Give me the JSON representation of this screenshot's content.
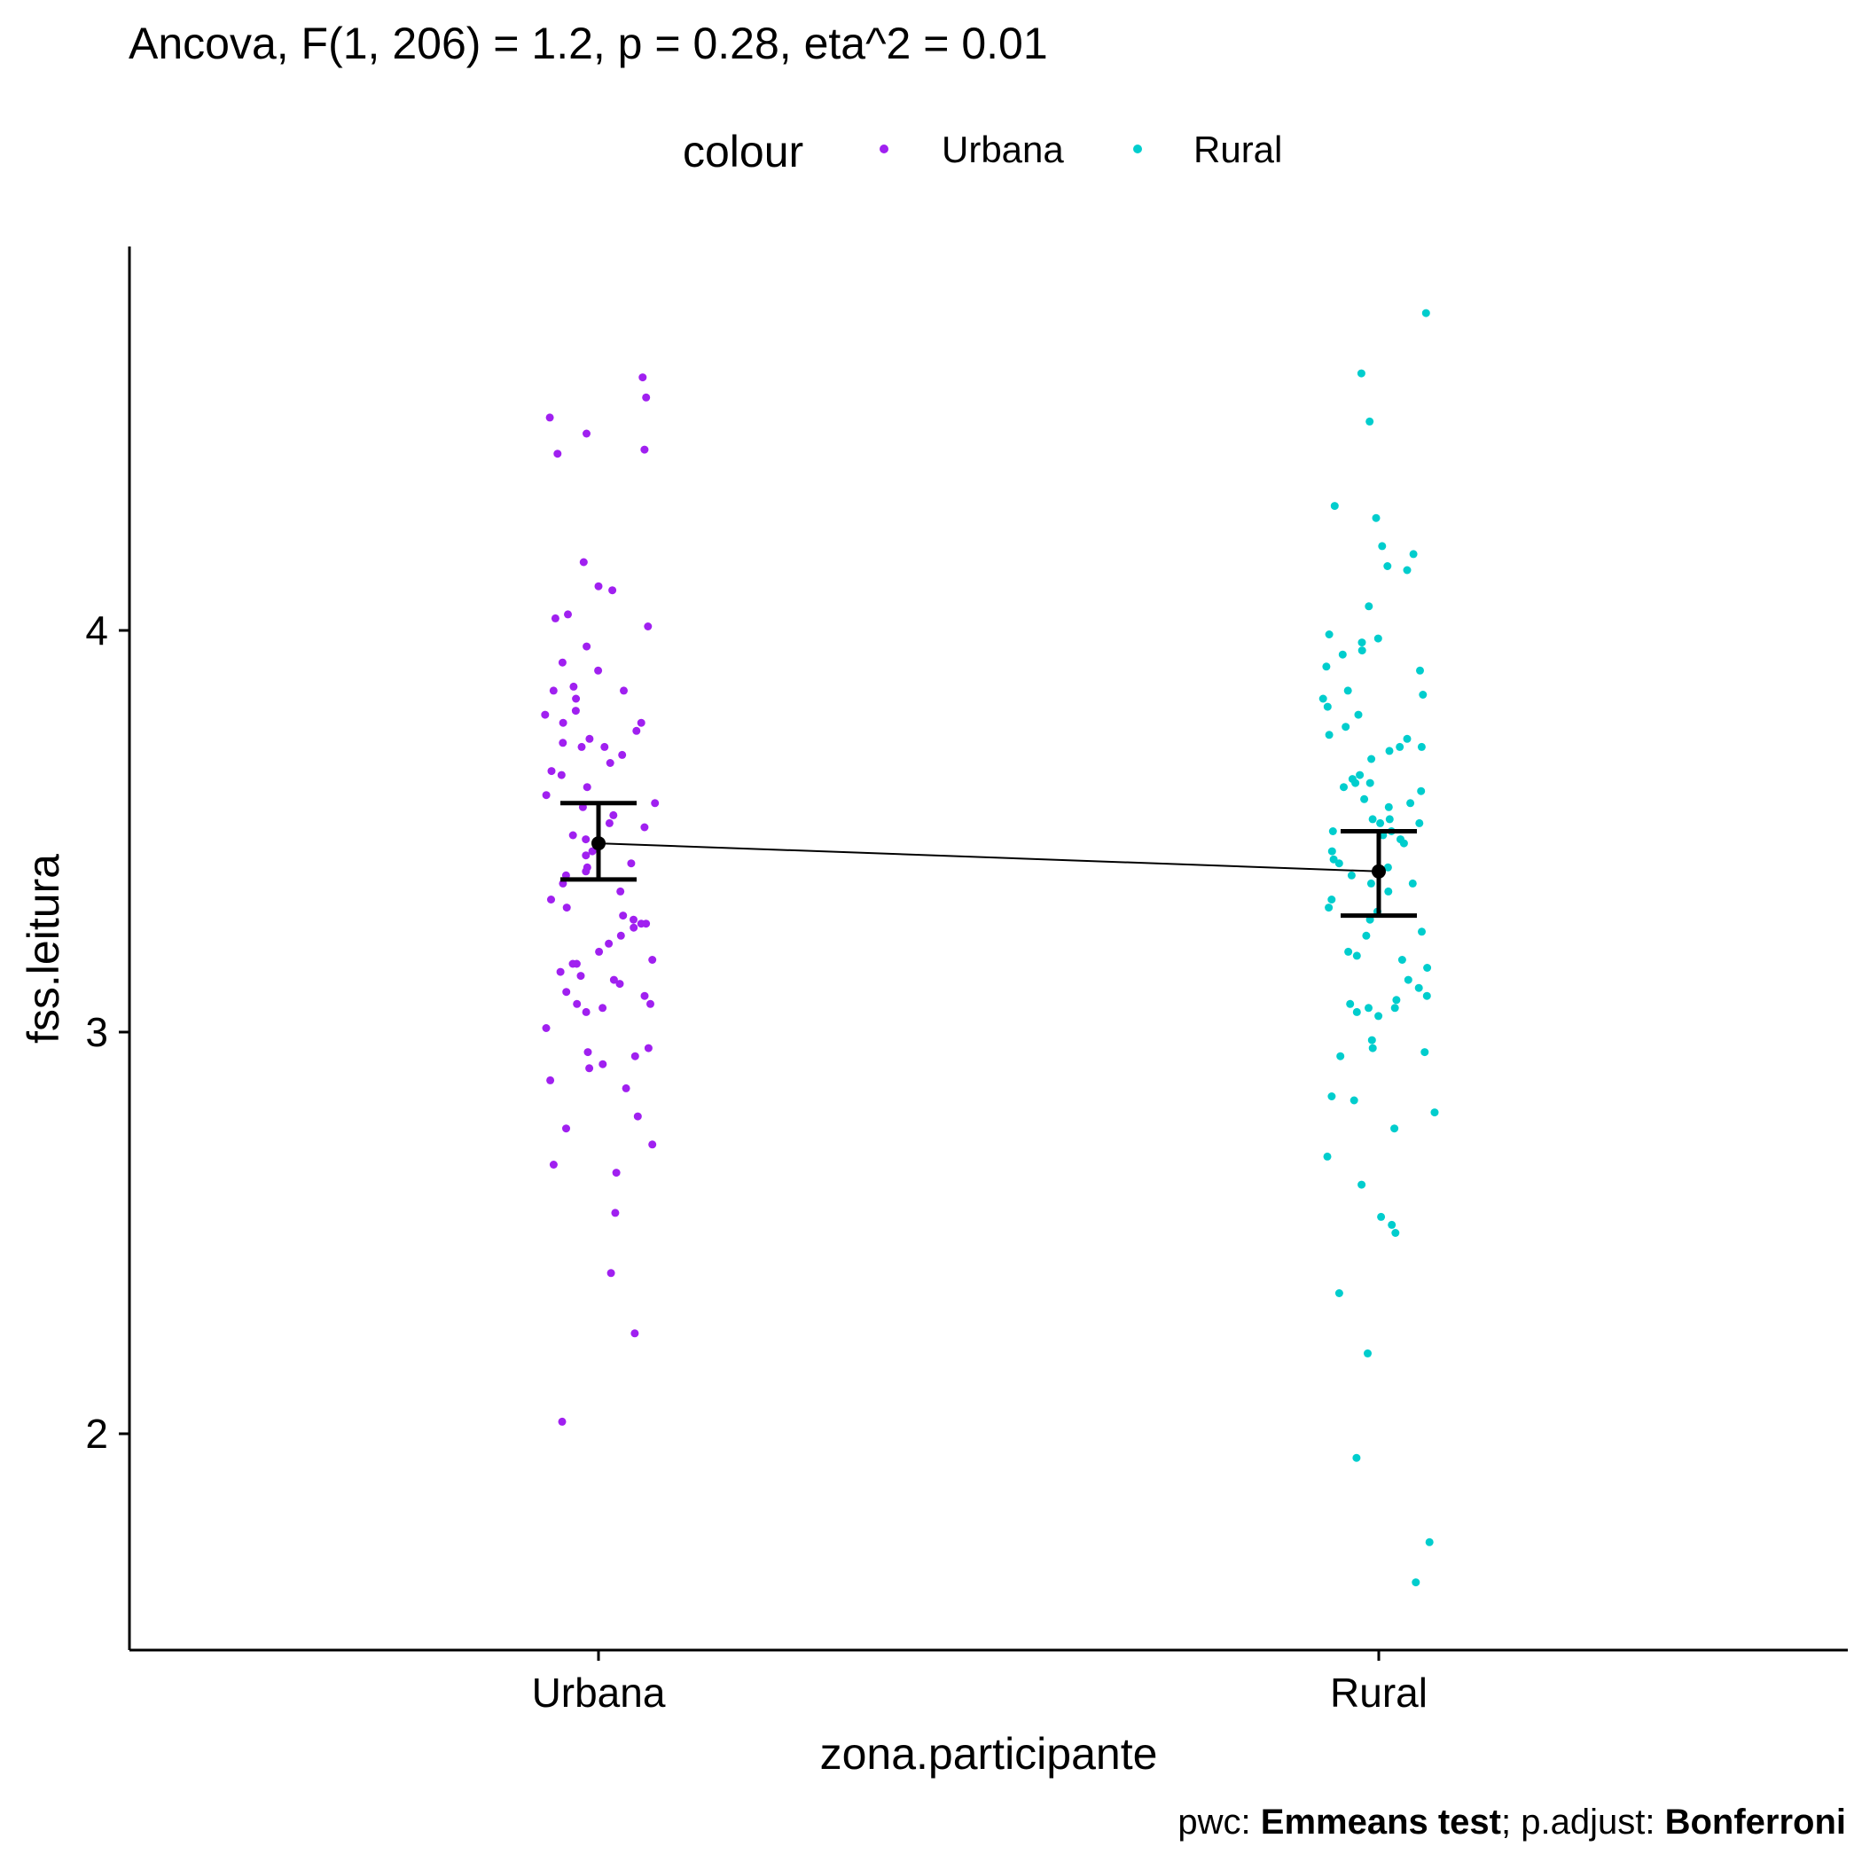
{
  "chart_data": {
    "type": "scatter",
    "title": "Ancova, F(1, 206) = 1.2, p = 0.28, eta^2 = 0.01",
    "xlabel": "zona.participante",
    "ylabel": "fss.leitura",
    "categories": [
      "Urbana",
      "Rural"
    ],
    "yticks": [
      2,
      3,
      4
    ],
    "ylim": [
      1.53,
      5.0
    ],
    "legend": {
      "title": "colour",
      "position": "top",
      "entries": [
        {
          "label": "Urbana",
          "color": "#A020F0"
        },
        {
          "label": "Rural",
          "color": "#00CDCD"
        }
      ]
    },
    "emmeans": [
      {
        "category": "Urbana",
        "mean": 3.47,
        "lower": 3.38,
        "upper": 3.57
      },
      {
        "category": "Rural",
        "mean": 3.4,
        "lower": 3.29,
        "upper": 3.5
      }
    ],
    "series": [
      {
        "name": "Urbana",
        "color": "#A020F0",
        "values": [
          4.63,
          4.58,
          4.53,
          4.49,
          4.45,
          4.44,
          4.17,
          4.11,
          4.1,
          4.04,
          4.03,
          4.01,
          3.96,
          3.92,
          3.9,
          3.86,
          3.85,
          3.85,
          3.83,
          3.8,
          3.79,
          3.77,
          3.77,
          3.75,
          3.73,
          3.72,
          3.71,
          3.71,
          3.69,
          3.67,
          3.65,
          3.64,
          3.61,
          3.59,
          3.57,
          3.56,
          3.54,
          3.52,
          3.51,
          3.49,
          3.48,
          3.45,
          3.44,
          3.42,
          3.41,
          3.4,
          3.39,
          3.37,
          3.35,
          3.33,
          3.31,
          3.29,
          3.28,
          3.27,
          3.27,
          3.26,
          3.24,
          3.22,
          3.2,
          3.18,
          3.17,
          3.17,
          3.15,
          3.14,
          3.13,
          3.12,
          3.1,
          3.09,
          3.07,
          3.07,
          3.06,
          3.05,
          3.01,
          2.96,
          2.95,
          2.94,
          2.92,
          2.91,
          2.88,
          2.86,
          2.79,
          2.76,
          2.72,
          2.67,
          2.65,
          2.55,
          2.4,
          2.25,
          2.03
        ]
      },
      {
        "name": "Rural",
        "color": "#00CDCD",
        "values": [
          4.79,
          4.64,
          4.52,
          4.31,
          4.28,
          4.21,
          4.19,
          4.16,
          4.15,
          4.06,
          3.99,
          3.98,
          3.97,
          3.95,
          3.94,
          3.91,
          3.9,
          3.85,
          3.84,
          3.83,
          3.81,
          3.79,
          3.76,
          3.74,
          3.73,
          3.71,
          3.71,
          3.7,
          3.68,
          3.64,
          3.63,
          3.62,
          3.62,
          3.61,
          3.6,
          3.58,
          3.57,
          3.56,
          3.53,
          3.53,
          3.52,
          3.52,
          3.5,
          3.5,
          3.49,
          3.48,
          3.47,
          3.45,
          3.43,
          3.42,
          3.41,
          3.39,
          3.37,
          3.37,
          3.35,
          3.33,
          3.31,
          3.3,
          3.28,
          3.25,
          3.24,
          3.2,
          3.19,
          3.18,
          3.16,
          3.13,
          3.11,
          3.09,
          3.08,
          3.07,
          3.06,
          3.06,
          3.05,
          3.04,
          2.98,
          2.96,
          2.95,
          2.94,
          2.84,
          2.83,
          2.8,
          2.76,
          2.69,
          2.62,
          2.54,
          2.52,
          2.5,
          2.35,
          2.2,
          1.94,
          1.73,
          1.63
        ]
      }
    ]
  },
  "caption": {
    "prefix1": "pwc: ",
    "bold1": "Emmeans test",
    "prefix2": "; p.adjust: ",
    "bold2": "Bonferroni"
  }
}
